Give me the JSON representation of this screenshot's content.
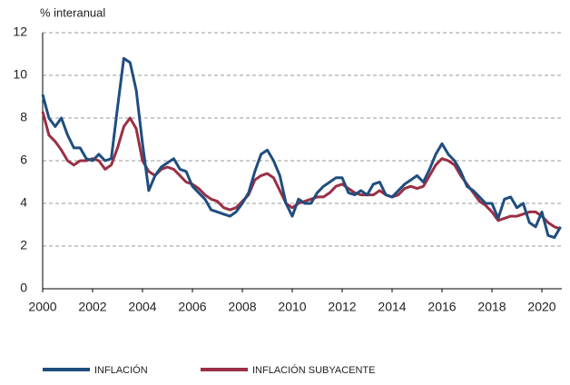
{
  "chart_data": {
    "type": "line",
    "y_axis_label": "% interanual",
    "x": [
      2000,
      2000.25,
      2000.5,
      2000.75,
      2001,
      2001.25,
      2001.5,
      2001.75,
      2002,
      2002.25,
      2002.5,
      2002.75,
      2003,
      2003.25,
      2003.5,
      2003.75,
      2004,
      2004.25,
      2004.5,
      2004.75,
      2005,
      2005.25,
      2005.5,
      2005.75,
      2006,
      2006.25,
      2006.5,
      2006.75,
      2007,
      2007.25,
      2007.5,
      2007.75,
      2008,
      2008.25,
      2008.5,
      2008.75,
      2009,
      2009.25,
      2009.5,
      2009.75,
      2010,
      2010.25,
      2010.5,
      2010.75,
      2011,
      2011.25,
      2011.5,
      2011.75,
      2012,
      2012.25,
      2012.5,
      2012.75,
      2013,
      2013.25,
      2013.5,
      2013.75,
      2014,
      2014.25,
      2014.5,
      2014.75,
      2015,
      2015.25,
      2015.5,
      2015.75,
      2016,
      2016.25,
      2016.5,
      2016.75,
      2017,
      2017.25,
      2017.5,
      2017.75,
      2018,
      2018.25,
      2018.5,
      2018.75,
      2019,
      2019.25,
      2019.5,
      2019.75,
      2020,
      2020.25,
      2020.5,
      2020.75
    ],
    "series": [
      {
        "name": "INFLACIÓN",
        "color": "#1f4e7e",
        "values": [
          9.1,
          8.0,
          7.6,
          8.0,
          7.2,
          6.6,
          6.6,
          6.1,
          6.0,
          6.3,
          6.0,
          6.1,
          8.5,
          10.8,
          10.6,
          9.3,
          6.8,
          4.6,
          5.3,
          5.7,
          5.9,
          6.1,
          5.6,
          5.5,
          4.8,
          4.5,
          4.2,
          3.7,
          3.6,
          3.5,
          3.4,
          3.6,
          4.0,
          4.5,
          5.5,
          6.3,
          6.5,
          6.0,
          5.3,
          4.0,
          3.4,
          4.2,
          4.0,
          4.0,
          4.5,
          4.8,
          5.0,
          5.2,
          5.2,
          4.5,
          4.4,
          4.6,
          4.4,
          4.9,
          5.0,
          4.4,
          4.3,
          4.6,
          4.9,
          5.1,
          5.3,
          5.0,
          5.6,
          6.3,
          6.8,
          6.3,
          6.0,
          5.5,
          4.8,
          4.6,
          4.3,
          4.0,
          4.0,
          3.3,
          4.2,
          4.3,
          3.8,
          4.0,
          3.1,
          2.9,
          3.6,
          2.5,
          2.4,
          2.9
        ]
      },
      {
        "name": "INFLACIÓN SUBYACENTE",
        "color": "#9b2f45",
        "values": [
          8.3,
          7.2,
          6.9,
          6.5,
          6.0,
          5.8,
          6.0,
          6.0,
          6.1,
          6.0,
          5.6,
          5.8,
          6.6,
          7.6,
          8.0,
          7.5,
          6.0,
          5.5,
          5.3,
          5.6,
          5.7,
          5.6,
          5.3,
          5.0,
          4.9,
          4.7,
          4.4,
          4.2,
          4.1,
          3.8,
          3.7,
          3.8,
          4.1,
          4.4,
          5.1,
          5.3,
          5.4,
          5.2,
          4.6,
          4.0,
          3.8,
          4.0,
          4.1,
          4.2,
          4.3,
          4.3,
          4.5,
          4.8,
          4.9,
          4.7,
          4.5,
          4.4,
          4.4,
          4.4,
          4.6,
          4.4,
          4.3,
          4.4,
          4.7,
          4.8,
          4.7,
          4.8,
          5.3,
          5.8,
          6.1,
          6.0,
          5.8,
          5.3,
          4.9,
          4.5,
          4.1,
          3.9,
          3.6,
          3.2,
          3.3,
          3.4,
          3.4,
          3.5,
          3.6,
          3.6,
          3.4,
          3.1,
          2.9,
          2.8
        ]
      }
    ],
    "xlim": [
      2000,
      2020.8
    ],
    "xticks": [
      2000,
      2002,
      2004,
      2006,
      2008,
      2010,
      2012,
      2014,
      2016,
      2018,
      2020
    ],
    "ylim": [
      0,
      12
    ],
    "yticks": [
      0,
      2,
      4,
      6,
      8,
      10,
      12
    ],
    "grid": true
  }
}
